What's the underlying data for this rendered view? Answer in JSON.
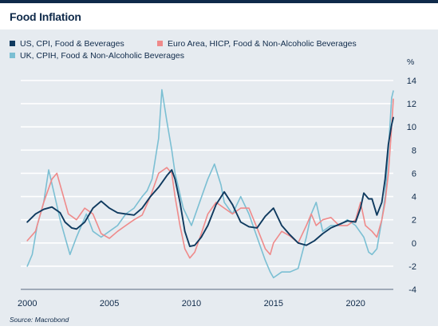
{
  "page": {
    "title": "Food Inflation",
    "unit": "%",
    "source": "Source: Macrobond"
  },
  "chart_data": {
    "type": "line",
    "title": "Food Inflation",
    "ylabel": "%",
    "xlim": [
      1999.6,
      2022.3
    ],
    "ylim": [
      -4,
      14
    ],
    "yticks": [
      -4,
      -2,
      0,
      2,
      4,
      6,
      8,
      10,
      12,
      14
    ],
    "xticks": [
      2000,
      2005,
      2010,
      2015,
      2020
    ],
    "grid": true,
    "legend_position": "top-left",
    "series": [
      {
        "name": "US, CPI, Food & Beverages",
        "color": "#0f3a5f",
        "points": [
          [
            2000,
            1.8
          ],
          [
            2000.5,
            2.5
          ],
          [
            2001,
            2.9
          ],
          [
            2001.5,
            3.1
          ],
          [
            2002,
            2.6
          ],
          [
            2002.3,
            1.8
          ],
          [
            2002.7,
            1.3
          ],
          [
            2003,
            1.2
          ],
          [
            2003.5,
            1.8
          ],
          [
            2004,
            3.0
          ],
          [
            2004.5,
            3.6
          ],
          [
            2005,
            3.0
          ],
          [
            2005.5,
            2.6
          ],
          [
            2006,
            2.5
          ],
          [
            2006.5,
            2.4
          ],
          [
            2007,
            3.0
          ],
          [
            2007.5,
            4.0
          ],
          [
            2008,
            4.8
          ],
          [
            2008.5,
            5.8
          ],
          [
            2008.8,
            6.3
          ],
          [
            2009,
            5.5
          ],
          [
            2009.3,
            3.5
          ],
          [
            2009.6,
            1.0
          ],
          [
            2009.9,
            -0.3
          ],
          [
            2010.2,
            -0.2
          ],
          [
            2010.6,
            0.5
          ],
          [
            2011,
            1.5
          ],
          [
            2011.5,
            3.3
          ],
          [
            2012,
            4.4
          ],
          [
            2012.5,
            3.3
          ],
          [
            2013,
            1.8
          ],
          [
            2013.5,
            1.4
          ],
          [
            2014,
            1.3
          ],
          [
            2014.5,
            2.3
          ],
          [
            2015,
            3.0
          ],
          [
            2015.5,
            1.5
          ],
          [
            2016,
            0.7
          ],
          [
            2016.5,
            0.0
          ],
          [
            2017,
            -0.2
          ],
          [
            2017.5,
            0.2
          ],
          [
            2018,
            0.8
          ],
          [
            2018.5,
            1.3
          ],
          [
            2019,
            1.6
          ],
          [
            2019.5,
            1.9
          ],
          [
            2020,
            1.8
          ],
          [
            2020.3,
            3.0
          ],
          [
            2020.5,
            4.3
          ],
          [
            2020.8,
            3.8
          ],
          [
            2021,
            3.8
          ],
          [
            2021.3,
            2.4
          ],
          [
            2021.6,
            3.5
          ],
          [
            2021.8,
            5.5
          ],
          [
            2022,
            8.5
          ],
          [
            2022.2,
            10.2
          ],
          [
            2022.3,
            10.8
          ]
        ]
      },
      {
        "name": "Euro Area, HICP, Food & Non-Alcoholic Beverages",
        "color": "#ef8a8a",
        "points": [
          [
            2000,
            0.2
          ],
          [
            2000.5,
            1.0
          ],
          [
            2001,
            3.5
          ],
          [
            2001.5,
            5.5
          ],
          [
            2001.8,
            6.0
          ],
          [
            2002,
            5.0
          ],
          [
            2002.5,
            2.5
          ],
          [
            2003,
            2.0
          ],
          [
            2003.5,
            3.0
          ],
          [
            2004,
            2.5
          ],
          [
            2004.5,
            0.8
          ],
          [
            2005,
            0.4
          ],
          [
            2005.5,
            1.0
          ],
          [
            2006,
            1.5
          ],
          [
            2006.5,
            2.0
          ],
          [
            2007,
            2.4
          ],
          [
            2007.5,
            4.0
          ],
          [
            2008,
            6.0
          ],
          [
            2008.5,
            6.5
          ],
          [
            2008.8,
            6.0
          ],
          [
            2009,
            4.0
          ],
          [
            2009.3,
            1.5
          ],
          [
            2009.6,
            -0.5
          ],
          [
            2009.9,
            -1.3
          ],
          [
            2010.2,
            -0.8
          ],
          [
            2010.6,
            0.8
          ],
          [
            2011,
            2.5
          ],
          [
            2011.5,
            3.5
          ],
          [
            2012,
            3.0
          ],
          [
            2012.5,
            2.5
          ],
          [
            2013,
            3.0
          ],
          [
            2013.5,
            3.0
          ],
          [
            2014,
            1.3
          ],
          [
            2014.5,
            -0.5
          ],
          [
            2014.8,
            -1.0
          ],
          [
            2015,
            0.0
          ],
          [
            2015.5,
            1.0
          ],
          [
            2016,
            0.6
          ],
          [
            2016.5,
            0.0
          ],
          [
            2017,
            1.5
          ],
          [
            2017.3,
            2.5
          ],
          [
            2017.6,
            1.5
          ],
          [
            2018,
            2.0
          ],
          [
            2018.5,
            2.2
          ],
          [
            2019,
            1.5
          ],
          [
            2019.5,
            1.5
          ],
          [
            2020,
            2.0
          ],
          [
            2020.3,
            3.5
          ],
          [
            2020.6,
            1.5
          ],
          [
            2021,
            1.0
          ],
          [
            2021.3,
            0.5
          ],
          [
            2021.6,
            2.0
          ],
          [
            2021.8,
            3.5
          ],
          [
            2022,
            6.0
          ],
          [
            2022.2,
            10.0
          ],
          [
            2022.3,
            12.4
          ]
        ]
      },
      {
        "name": "UK, CPIH, Food & Non-Alcoholic Beverages",
        "color": "#7bbfd3",
        "points": [
          [
            2000,
            -2.0
          ],
          [
            2000.3,
            -1.0
          ],
          [
            2000.6,
            1.5
          ],
          [
            2001,
            3.5
          ],
          [
            2001.3,
            6.3
          ],
          [
            2001.6,
            4.5
          ],
          [
            2002,
            2.0
          ],
          [
            2002.3,
            0.5
          ],
          [
            2002.6,
            -1.0
          ],
          [
            2003,
            0.5
          ],
          [
            2003.3,
            1.5
          ],
          [
            2003.6,
            2.5
          ],
          [
            2004,
            1.0
          ],
          [
            2004.5,
            0.5
          ],
          [
            2005,
            1.0
          ],
          [
            2005.5,
            1.5
          ],
          [
            2006,
            2.5
          ],
          [
            2006.5,
            3.0
          ],
          [
            2007,
            4.0
          ],
          [
            2007.3,
            4.5
          ],
          [
            2007.6,
            5.5
          ],
          [
            2008,
            9.0
          ],
          [
            2008.2,
            13.2
          ],
          [
            2008.5,
            10.5
          ],
          [
            2008.8,
            8.0
          ],
          [
            2009,
            6.0
          ],
          [
            2009.5,
            3.0
          ],
          [
            2010,
            1.5
          ],
          [
            2010.5,
            3.5
          ],
          [
            2011,
            5.5
          ],
          [
            2011.4,
            6.8
          ],
          [
            2011.8,
            5.0
          ],
          [
            2012,
            3.5
          ],
          [
            2012.5,
            2.5
          ],
          [
            2013,
            4.0
          ],
          [
            2013.5,
            2.5
          ],
          [
            2014,
            0.5
          ],
          [
            2014.5,
            -1.5
          ],
          [
            2014.8,
            -2.5
          ],
          [
            2015,
            -3.0
          ],
          [
            2015.5,
            -2.5
          ],
          [
            2016,
            -2.5
          ],
          [
            2016.5,
            -2.2
          ],
          [
            2017,
            0.5
          ],
          [
            2017.3,
            2.5
          ],
          [
            2017.6,
            3.5
          ],
          [
            2018,
            1.0
          ],
          [
            2018.5,
            1.5
          ],
          [
            2019,
            1.5
          ],
          [
            2019.5,
            2.0
          ],
          [
            2020,
            1.5
          ],
          [
            2020.5,
            0.5
          ],
          [
            2020.8,
            -0.8
          ],
          [
            2021,
            -1.0
          ],
          [
            2021.3,
            -0.5
          ],
          [
            2021.6,
            2.0
          ],
          [
            2021.8,
            4.0
          ],
          [
            2022,
            8.0
          ],
          [
            2022.2,
            12.5
          ],
          [
            2022.3,
            13.1
          ]
        ]
      }
    ]
  }
}
